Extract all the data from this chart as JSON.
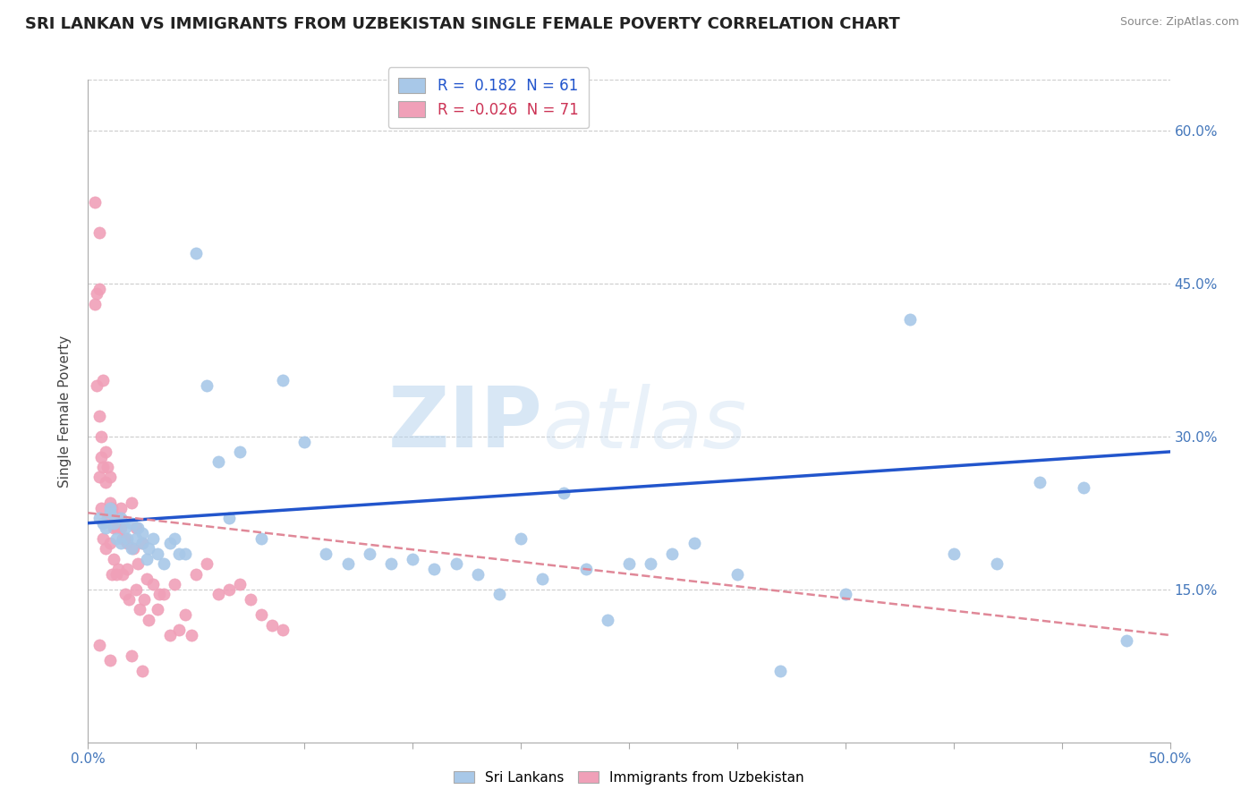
{
  "title": "SRI LANKAN VS IMMIGRANTS FROM UZBEKISTAN SINGLE FEMALE POVERTY CORRELATION CHART",
  "source": "Source: ZipAtlas.com",
  "ylabel": "Single Female Poverty",
  "xlim": [
    0.0,
    0.5
  ],
  "ylim": [
    0.0,
    0.65
  ],
  "xticks": [
    0.0,
    0.05,
    0.1,
    0.15,
    0.2,
    0.25,
    0.3,
    0.35,
    0.4,
    0.45,
    0.5
  ],
  "ytick_positions": [
    0.0,
    0.15,
    0.3,
    0.45,
    0.6
  ],
  "ytick_labels": [
    "",
    "15.0%",
    "30.0%",
    "45.0%",
    "60.0%"
  ],
  "sri_lankans_R": 0.182,
  "sri_lankans_N": 61,
  "uzbekistan_R": -0.026,
  "uzbekistan_N": 71,
  "sri_color": "#a8c8e8",
  "uzb_color": "#f0a0b8",
  "sri_line_color": "#2255cc",
  "uzb_line_color": "#e08898",
  "watermark1": "ZIP",
  "watermark2": "atlas",
  "sri_lankans_x": [
    0.005,
    0.007,
    0.008,
    0.01,
    0.01,
    0.012,
    0.013,
    0.015,
    0.015,
    0.017,
    0.018,
    0.02,
    0.02,
    0.022,
    0.023,
    0.025,
    0.025,
    0.027,
    0.028,
    0.03,
    0.032,
    0.035,
    0.038,
    0.04,
    0.042,
    0.045,
    0.05,
    0.055,
    0.06,
    0.065,
    0.07,
    0.08,
    0.09,
    0.1,
    0.11,
    0.12,
    0.13,
    0.14,
    0.15,
    0.16,
    0.17,
    0.18,
    0.19,
    0.2,
    0.21,
    0.22,
    0.23,
    0.24,
    0.25,
    0.26,
    0.27,
    0.28,
    0.3,
    0.32,
    0.35,
    0.38,
    0.4,
    0.42,
    0.44,
    0.46,
    0.48
  ],
  "sri_lankans_y": [
    0.22,
    0.215,
    0.21,
    0.23,
    0.225,
    0.215,
    0.2,
    0.22,
    0.195,
    0.21,
    0.2,
    0.215,
    0.19,
    0.2,
    0.21,
    0.195,
    0.205,
    0.18,
    0.19,
    0.2,
    0.185,
    0.175,
    0.195,
    0.2,
    0.185,
    0.185,
    0.48,
    0.35,
    0.275,
    0.22,
    0.285,
    0.2,
    0.355,
    0.295,
    0.185,
    0.175,
    0.185,
    0.175,
    0.18,
    0.17,
    0.175,
    0.165,
    0.145,
    0.2,
    0.16,
    0.245,
    0.17,
    0.12,
    0.175,
    0.175,
    0.185,
    0.195,
    0.165,
    0.07,
    0.145,
    0.415,
    0.185,
    0.175,
    0.255,
    0.25,
    0.1
  ],
  "uzbekistan_x": [
    0.003,
    0.003,
    0.004,
    0.004,
    0.005,
    0.005,
    0.005,
    0.005,
    0.005,
    0.006,
    0.006,
    0.006,
    0.007,
    0.007,
    0.007,
    0.008,
    0.008,
    0.008,
    0.009,
    0.009,
    0.01,
    0.01,
    0.01,
    0.01,
    0.011,
    0.011,
    0.012,
    0.012,
    0.013,
    0.013,
    0.014,
    0.014,
    0.015,
    0.015,
    0.016,
    0.016,
    0.017,
    0.017,
    0.018,
    0.018,
    0.019,
    0.02,
    0.02,
    0.021,
    0.022,
    0.022,
    0.023,
    0.024,
    0.025,
    0.025,
    0.026,
    0.027,
    0.028,
    0.03,
    0.032,
    0.033,
    0.035,
    0.038,
    0.04,
    0.042,
    0.045,
    0.048,
    0.05,
    0.055,
    0.06,
    0.065,
    0.07,
    0.075,
    0.08,
    0.085,
    0.09
  ],
  "uzbekistan_y": [
    0.53,
    0.43,
    0.44,
    0.35,
    0.5,
    0.445,
    0.32,
    0.26,
    0.095,
    0.3,
    0.28,
    0.23,
    0.355,
    0.27,
    0.2,
    0.285,
    0.255,
    0.19,
    0.27,
    0.22,
    0.26,
    0.235,
    0.195,
    0.08,
    0.23,
    0.165,
    0.21,
    0.18,
    0.21,
    0.165,
    0.22,
    0.17,
    0.23,
    0.21,
    0.2,
    0.165,
    0.2,
    0.145,
    0.195,
    0.17,
    0.14,
    0.235,
    0.085,
    0.19,
    0.21,
    0.15,
    0.175,
    0.13,
    0.195,
    0.07,
    0.14,
    0.16,
    0.12,
    0.155,
    0.13,
    0.145,
    0.145,
    0.105,
    0.155,
    0.11,
    0.125,
    0.105,
    0.165,
    0.175,
    0.145,
    0.15,
    0.155,
    0.14,
    0.125,
    0.115,
    0.11
  ]
}
